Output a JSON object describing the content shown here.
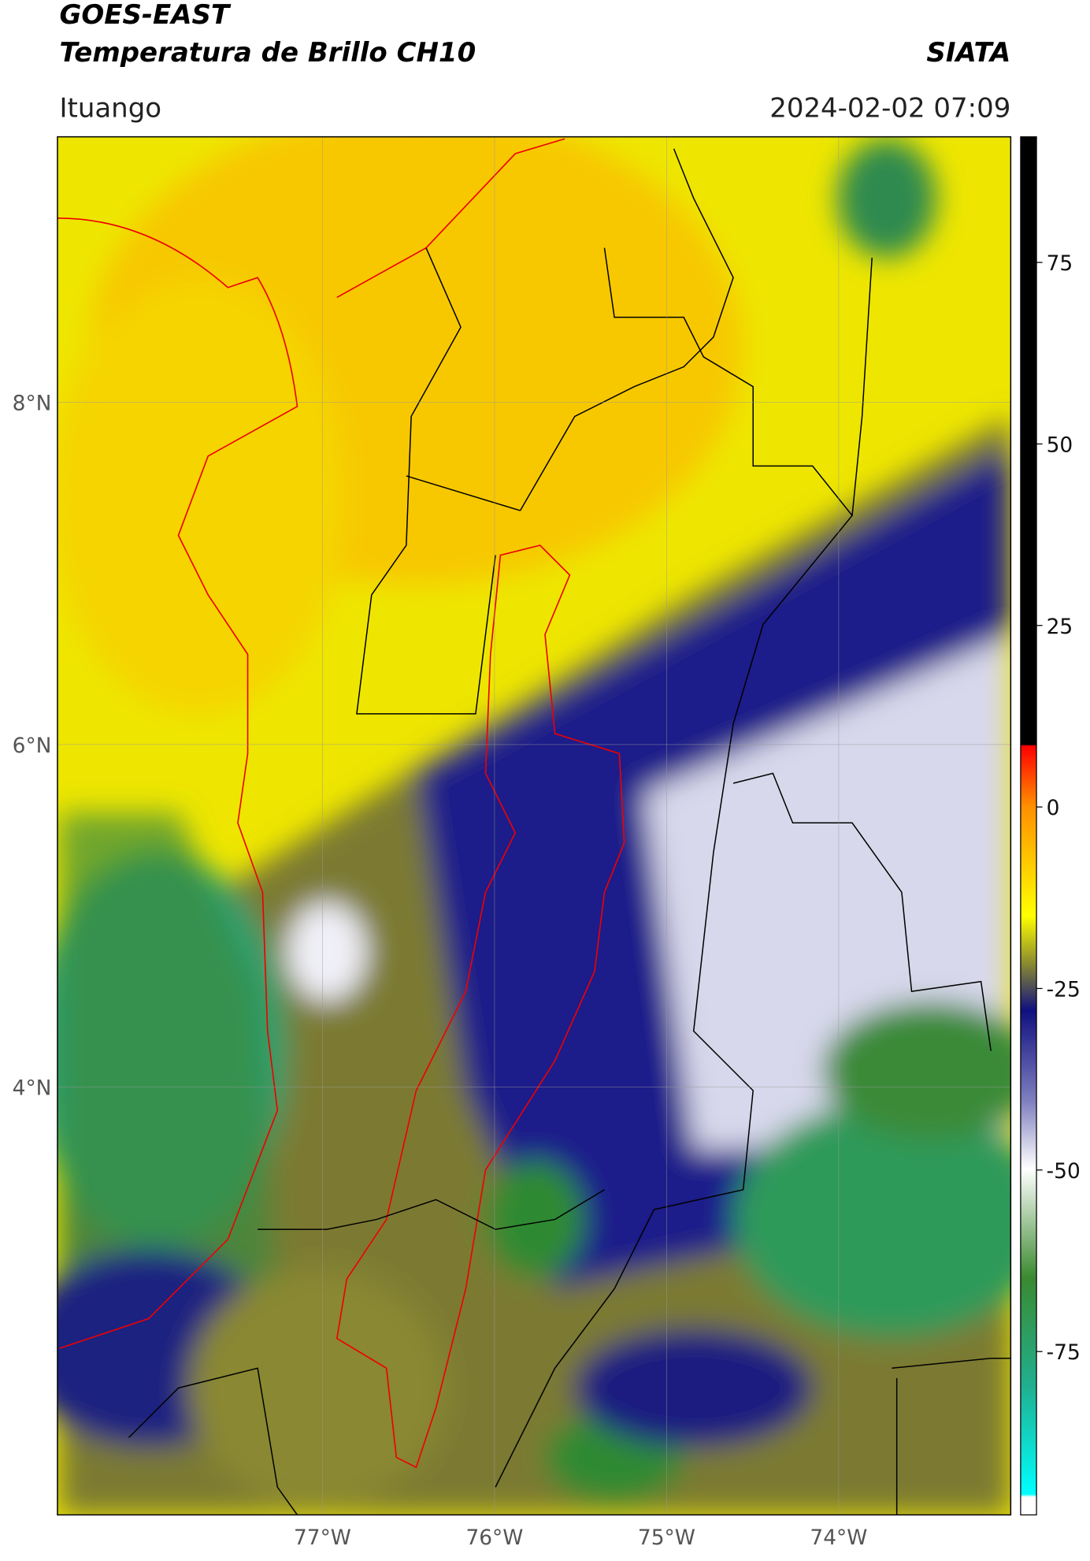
{
  "header": {
    "title": "GOES-EAST",
    "subtitle": "Temperatura de Brillo CH10",
    "brand": "SIATA",
    "location": "Ituango",
    "datetime": "2024-02-02 07:09"
  },
  "map": {
    "xlim": [
      -78.54,
      -73.0
    ],
    "ylim": [
      1.5,
      9.55
    ],
    "xticks": [
      {
        "value": -77,
        "label": "77°W"
      },
      {
        "value": -76,
        "label": "76°W"
      },
      {
        "value": -75,
        "label": "75°W"
      },
      {
        "value": -74,
        "label": "74°W"
      }
    ],
    "yticks": [
      {
        "value": 8,
        "label": "8°N"
      },
      {
        "value": 6,
        "label": "6°N"
      },
      {
        "value": 4,
        "label": "4°N"
      }
    ]
  },
  "colorbar": {
    "lim": [
      -97.5,
      92.3
    ],
    "ticks": [
      75,
      50,
      25,
      0,
      -25,
      -50,
      -75
    ]
  }
}
